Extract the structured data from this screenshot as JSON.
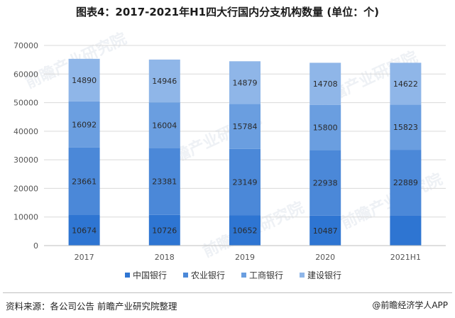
{
  "title": "图表4：2017-2021年H1四大行国内分支机构数量 (单位：个)",
  "footer": {
    "source": "资料来源：各公司公告 前瞻产业研究院整理",
    "brand": "@前瞻经济学人APP"
  },
  "watermark": "前瞻产业研究院",
  "colors": {
    "s0": "#2e75d2",
    "s1": "#4b88d8",
    "s2": "#6a9ee0",
    "s3": "#8fb6e8",
    "label": "#2a2a2a",
    "axis": "#555555",
    "grid": "#d9d9d9"
  },
  "chart_data": {
    "type": "bar",
    "stacked": true,
    "categories": [
      "2017",
      "2018",
      "2019",
      "2020",
      "2021H1"
    ],
    "series": [
      {
        "name": "中国银行",
        "values": [
          10674,
          10726,
          10652,
          10487,
          10605
        ]
      },
      {
        "name": "农业银行",
        "values": [
          23661,
          23381,
          23149,
          22938,
          22889
        ]
      },
      {
        "name": "工商银行",
        "values": [
          16092,
          16004,
          15784,
          15800,
          15823
        ]
      },
      {
        "name": "建设银行",
        "values": [
          14890,
          14946,
          14879,
          14708,
          14622
        ]
      }
    ],
    "labeled": [
      [
        true,
        true,
        true,
        true,
        false
      ],
      [
        true,
        true,
        true,
        true,
        true
      ],
      [
        true,
        true,
        true,
        true,
        true
      ],
      [
        true,
        true,
        true,
        true,
        true
      ]
    ],
    "ylim": [
      0,
      70000
    ],
    "yticks": [
      0,
      10000,
      20000,
      30000,
      40000,
      50000,
      60000,
      70000
    ],
    "grid": true,
    "legend": "bottom"
  }
}
